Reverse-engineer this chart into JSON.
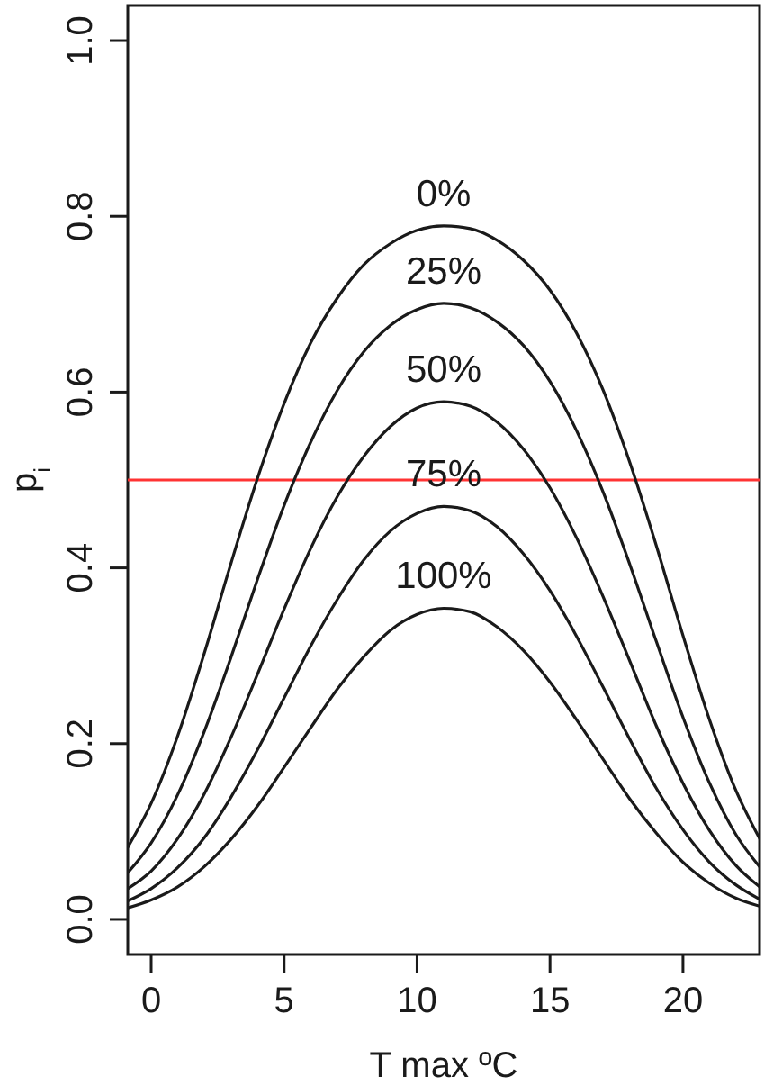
{
  "chart_data": {
    "type": "line",
    "xlabel": "T max ºC",
    "ylabel": "p$_{i}$",
    "x": [
      -0.88,
      0,
      1,
      2,
      3,
      4,
      5,
      6,
      7,
      8,
      9,
      10,
      11,
      12,
      13,
      14,
      15,
      16,
      17,
      18,
      19,
      20,
      21,
      22,
      22.88
    ],
    "xlim": [
      -0.88,
      22.88
    ],
    "xticks": [
      0,
      5,
      10,
      15,
      20
    ],
    "ylim": [
      -0.04,
      1.04
    ],
    "yticks": [
      {
        "value": 0,
        "label": "0.0"
      },
      0.2,
      0.4,
      0.6,
      0.8,
      {
        "value": 1,
        "label": "1.0"
      }
    ],
    "series": [
      {
        "name": "0%",
        "color": "#1a1a1a",
        "values": [
          0.082,
          0.132,
          0.209,
          0.303,
          0.405,
          0.502,
          0.587,
          0.656,
          0.707,
          0.745,
          0.769,
          0.784,
          0.789,
          0.786,
          0.773,
          0.75,
          0.716,
          0.667,
          0.602,
          0.52,
          0.425,
          0.323,
          0.227,
          0.146,
          0.092
        ]
      },
      {
        "name": "25%",
        "color": "#1a1a1a",
        "values": [
          0.053,
          0.087,
          0.142,
          0.214,
          0.298,
          0.387,
          0.471,
          0.543,
          0.602,
          0.646,
          0.676,
          0.694,
          0.701,
          0.696,
          0.68,
          0.653,
          0.612,
          0.556,
          0.486,
          0.404,
          0.316,
          0.23,
          0.155,
          0.096,
          0.06
        ]
      },
      {
        "name": "50%",
        "color": "#1a1a1a",
        "values": [
          0.035,
          0.055,
          0.092,
          0.143,
          0.207,
          0.279,
          0.353,
          0.422,
          0.481,
          0.527,
          0.561,
          0.582,
          0.589,
          0.584,
          0.566,
          0.535,
          0.491,
          0.434,
          0.367,
          0.294,
          0.22,
          0.155,
          0.101,
          0.061,
          0.037
        ]
      },
      {
        "name": "75%",
        "color": "#1a1a1a",
        "values": [
          0.021,
          0.035,
          0.059,
          0.093,
          0.139,
          0.193,
          0.252,
          0.311,
          0.364,
          0.409,
          0.442,
          0.462,
          0.47,
          0.465,
          0.447,
          0.416,
          0.374,
          0.322,
          0.264,
          0.205,
          0.149,
          0.102,
          0.065,
          0.039,
          0.023
        ]
      },
      {
        "name": "100%",
        "color": "#1a1a1a",
        "values": [
          0.013,
          0.022,
          0.037,
          0.06,
          0.091,
          0.129,
          0.173,
          0.218,
          0.262,
          0.299,
          0.329,
          0.347,
          0.354,
          0.35,
          0.333,
          0.306,
          0.27,
          0.227,
          0.182,
          0.137,
          0.098,
          0.065,
          0.041,
          0.024,
          0.015
        ]
      }
    ],
    "ref_lines": [
      {
        "axis": "y",
        "value": 0.5,
        "color": "#ff3333"
      }
    ]
  }
}
